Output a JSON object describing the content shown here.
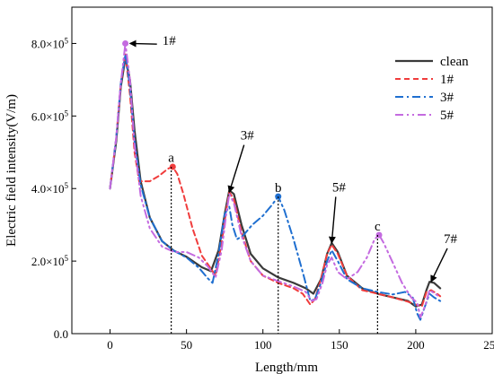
{
  "chart_data": {
    "type": "line",
    "xlabel": "Length/mm",
    "ylabel": "Electric field intensity(V/m)",
    "xlim": [
      -25,
      250
    ],
    "ylim": [
      0,
      900000
    ],
    "x_ticks": [
      0,
      50,
      100,
      150,
      200,
      250
    ],
    "x_tick_labels": [
      "0",
      "50",
      "100",
      "150",
      "200",
      "250"
    ],
    "y_ticks": [
      0,
      200000,
      400000,
      600000,
      800000
    ],
    "y_tick_labels": [
      {
        "mant": "0.0",
        "exp": ""
      },
      {
        "mant": "2.0×10",
        "exp": "5"
      },
      {
        "mant": "4.0×10",
        "exp": "5"
      },
      {
        "mant": "6.0×10",
        "exp": "5"
      },
      {
        "mant": "8.0×10",
        "exp": "5"
      }
    ],
    "legend_position": "top-right",
    "series": [
      {
        "name": "clean",
        "color": "#3a3a3a",
        "dash": "",
        "width": 2.2,
        "points": [
          [
            0,
            400000
          ],
          [
            4,
            530000
          ],
          [
            7,
            680000
          ],
          [
            10,
            760000
          ],
          [
            13,
            700000
          ],
          [
            16,
            560000
          ],
          [
            20,
            420000
          ],
          [
            26,
            320000
          ],
          [
            34,
            255000
          ],
          [
            42,
            228000
          ],
          [
            50,
            212000
          ],
          [
            60,
            183000
          ],
          [
            66,
            172000
          ],
          [
            71,
            230000
          ],
          [
            75,
            330000
          ],
          [
            78,
            395000
          ],
          [
            81,
            385000
          ],
          [
            86,
            300000
          ],
          [
            92,
            220000
          ],
          [
            100,
            180000
          ],
          [
            110,
            155000
          ],
          [
            120,
            140000
          ],
          [
            128,
            125000
          ],
          [
            133,
            110000
          ],
          [
            138,
            150000
          ],
          [
            142,
            220000
          ],
          [
            145,
            250000
          ],
          [
            149,
            225000
          ],
          [
            155,
            160000
          ],
          [
            165,
            125000
          ],
          [
            175,
            110000
          ],
          [
            185,
            100000
          ],
          [
            195,
            90000
          ],
          [
            200,
            75000
          ],
          [
            204,
            80000
          ],
          [
            207,
            120000
          ],
          [
            209,
            143000
          ],
          [
            212,
            140000
          ],
          [
            216,
            125000
          ]
        ]
      },
      {
        "name": "1#",
        "color": "#f03c3c",
        "dash": "6,4",
        "width": 2,
        "points": [
          [
            0,
            400000
          ],
          [
            4,
            540000
          ],
          [
            7,
            690000
          ],
          [
            10,
            770000
          ],
          [
            13,
            660000
          ],
          [
            16,
            500000
          ],
          [
            19,
            420000
          ],
          [
            26,
            420000
          ],
          [
            32,
            435000
          ],
          [
            38,
            455000
          ],
          [
            41,
            460000
          ],
          [
            44,
            440000
          ],
          [
            48,
            385000
          ],
          [
            54,
            290000
          ],
          [
            60,
            215000
          ],
          [
            65,
            185000
          ],
          [
            69,
            160000
          ],
          [
            73,
            250000
          ],
          [
            76,
            340000
          ],
          [
            78,
            390000
          ],
          [
            81,
            370000
          ],
          [
            86,
            280000
          ],
          [
            92,
            200000
          ],
          [
            100,
            160000
          ],
          [
            110,
            140000
          ],
          [
            120,
            125000
          ],
          [
            126,
            110000
          ],
          [
            131,
            80000
          ],
          [
            134,
            95000
          ],
          [
            138,
            150000
          ],
          [
            142,
            220000
          ],
          [
            145,
            245000
          ],
          [
            149,
            220000
          ],
          [
            155,
            160000
          ],
          [
            165,
            120000
          ],
          [
            175,
            110000
          ],
          [
            185,
            100000
          ],
          [
            195,
            88000
          ],
          [
            200,
            80000
          ],
          [
            204,
            75000
          ],
          [
            207,
            115000
          ],
          [
            210,
            120000
          ],
          [
            214,
            110000
          ],
          [
            216,
            103000
          ]
        ]
      },
      {
        "name": "3#",
        "color": "#1f6fd0",
        "dash": "9,4,2,4",
        "width": 2,
        "points": [
          [
            0,
            400000
          ],
          [
            4,
            540000
          ],
          [
            7,
            690000
          ],
          [
            10,
            770000
          ],
          [
            13,
            680000
          ],
          [
            16,
            530000
          ],
          [
            20,
            410000
          ],
          [
            26,
            320000
          ],
          [
            34,
            255000
          ],
          [
            42,
            228000
          ],
          [
            50,
            210000
          ],
          [
            58,
            182000
          ],
          [
            64,
            152000
          ],
          [
            67,
            140000
          ],
          [
            71,
            220000
          ],
          [
            75,
            330000
          ],
          [
            78,
            350000
          ],
          [
            80,
            300000
          ],
          [
            83,
            260000
          ],
          [
            87,
            270000
          ],
          [
            93,
            300000
          ],
          [
            100,
            325000
          ],
          [
            106,
            355000
          ],
          [
            110,
            378000
          ],
          [
            114,
            340000
          ],
          [
            120,
            260000
          ],
          [
            126,
            170000
          ],
          [
            131,
            90000
          ],
          [
            134,
            95000
          ],
          [
            138,
            140000
          ],
          [
            142,
            200000
          ],
          [
            145,
            230000
          ],
          [
            149,
            200000
          ],
          [
            155,
            150000
          ],
          [
            165,
            125000
          ],
          [
            175,
            115000
          ],
          [
            185,
            108000
          ],
          [
            193,
            115000
          ],
          [
            198,
            100000
          ],
          [
            201,
            55000
          ],
          [
            203,
            38000
          ],
          [
            206,
            75000
          ],
          [
            209,
            110000
          ],
          [
            212,
            100000
          ],
          [
            216,
            90000
          ]
        ]
      },
      {
        "name": "5#",
        "color": "#c46be0",
        "dash": "9,4,2,4,2,4",
        "width": 2,
        "points": [
          [
            0,
            400000
          ],
          [
            4,
            540000
          ],
          [
            7,
            690000
          ],
          [
            10,
            800000
          ],
          [
            13,
            700000
          ],
          [
            16,
            520000
          ],
          [
            20,
            380000
          ],
          [
            26,
            290000
          ],
          [
            34,
            240000
          ],
          [
            42,
            225000
          ],
          [
            50,
            225000
          ],
          [
            58,
            210000
          ],
          [
            64,
            185000
          ],
          [
            69,
            155000
          ],
          [
            73,
            230000
          ],
          [
            76,
            330000
          ],
          [
            78,
            385000
          ],
          [
            81,
            360000
          ],
          [
            86,
            270000
          ],
          [
            92,
            200000
          ],
          [
            100,
            160000
          ],
          [
            110,
            145000
          ],
          [
            120,
            130000
          ],
          [
            128,
            115000
          ],
          [
            132,
            90000
          ],
          [
            135,
            95000
          ],
          [
            139,
            140000
          ],
          [
            142,
            190000
          ],
          [
            145,
            210000
          ],
          [
            149,
            170000
          ],
          [
            155,
            150000
          ],
          [
            162,
            170000
          ],
          [
            168,
            210000
          ],
          [
            173,
            260000
          ],
          [
            176,
            272000
          ],
          [
            179,
            250000
          ],
          [
            185,
            195000
          ],
          [
            191,
            140000
          ],
          [
            197,
            100000
          ],
          [
            201,
            85000
          ],
          [
            203,
            45000
          ],
          [
            206,
            75000
          ],
          [
            209,
            120000
          ],
          [
            212,
            112000
          ],
          [
            216,
            100000
          ]
        ]
      }
    ],
    "markers": [
      {
        "series": "1#",
        "x": 41,
        "y": 460000,
        "color": "#f03c3c"
      },
      {
        "series": "3#",
        "x": 110,
        "y": 378000,
        "color": "#1f6fd0"
      },
      {
        "series": "5#",
        "x": 176,
        "y": 272000,
        "color": "#c46be0"
      },
      {
        "series": "5#",
        "x": 10,
        "y": 800000,
        "color": "#c46be0"
      }
    ],
    "dotted_verticals": [
      {
        "x": 40,
        "y_top": 460000
      },
      {
        "x": 110,
        "y_top": 378000
      },
      {
        "x": 175,
        "y_top": 272000
      }
    ],
    "annotations": [
      {
        "label": "a",
        "x": 40,
        "y": 468000
      },
      {
        "label": "b",
        "x": 110,
        "y": 386000
      },
      {
        "label": "c",
        "x": 175,
        "y": 280000
      }
    ],
    "arrows": [
      {
        "label": "1#",
        "tip_x": 13,
        "tip_y": 800000,
        "label_x": 33,
        "label_y": 808000
      },
      {
        "label": "3#",
        "tip_x": 78,
        "tip_y": 390000,
        "label_x": 90,
        "label_y": 530000
      },
      {
        "label": "5#",
        "tip_x": 145,
        "tip_y": 250000,
        "label_x": 150,
        "label_y": 387000
      },
      {
        "label": "7#",
        "tip_x": 210,
        "tip_y": 143000,
        "label_x": 223,
        "label_y": 245000
      }
    ]
  }
}
